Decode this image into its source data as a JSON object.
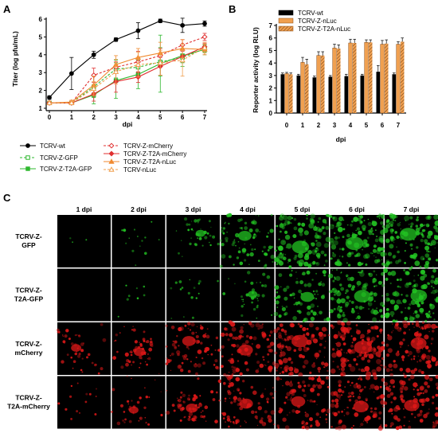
{
  "panels": {
    "a": {
      "letter": "A",
      "xlabel": "dpi",
      "ylabel": "Titer (log pfu/mL)",
      "xlim": [
        0,
        7
      ],
      "ylim": [
        1,
        6
      ],
      "xticks": [
        "0",
        "1",
        "2",
        "3",
        "4",
        "5",
        "6",
        "7"
      ],
      "yticks": [
        "1",
        "2",
        "3",
        "4",
        "5",
        "6"
      ]
    },
    "b": {
      "letter": "B",
      "xlabel": "dpi",
      "ylabel": "Reporter activity (log RLU)",
      "ylim": [
        0,
        7
      ],
      "xticks": [
        "0",
        "1",
        "2",
        "3",
        "4",
        "5",
        "6",
        "7"
      ],
      "yticks": [
        "0",
        "1",
        "2",
        "3",
        "4",
        "5",
        "6",
        "7"
      ]
    },
    "c": {
      "letter": "C",
      "columns": [
        "1 dpi",
        "2 dpi",
        "3 dpi",
        "4 dpi",
        "5 dpi",
        "6 dpi",
        "7 dpi"
      ],
      "rows": [
        {
          "label_line1": "TCRV-Z-",
          "label_line2": "GFP",
          "color": "#22c322",
          "intensity": [
            0.02,
            0.1,
            0.25,
            0.55,
            0.85,
            0.9,
            0.85
          ]
        },
        {
          "label_line1": "TCRV-Z-",
          "label_line2": "T2A-GFP",
          "color": "#22c322",
          "intensity": [
            0.0,
            0.06,
            0.12,
            0.25,
            0.55,
            0.8,
            0.8
          ]
        },
        {
          "label_line1": "TCRV-Z-",
          "label_line2": "mCherry",
          "color": "#e01818",
          "intensity": [
            0.3,
            0.4,
            0.55,
            0.65,
            0.8,
            0.9,
            0.75
          ]
        },
        {
          "label_line1": "TCRV-Z-",
          "label_line2": "T2A-mCherry",
          "color": "#e01818",
          "intensity": [
            0.1,
            0.25,
            0.45,
            0.55,
            0.6,
            0.7,
            0.7
          ]
        }
      ]
    }
  },
  "chart_data": [
    {
      "type": "line",
      "x": [
        0,
        1,
        2,
        3,
        4,
        5,
        6,
        7
      ],
      "xlabel": "dpi",
      "ylabel": "Titer (log pfu/mL)",
      "xlim": [
        0,
        7
      ],
      "ylim": [
        1,
        6
      ],
      "series": [
        {
          "name": "TCRV-wt",
          "color": "#000000",
          "marker": "circle",
          "line": "solid",
          "values": [
            1.6,
            2.95,
            4.0,
            4.85,
            5.35,
            5.9,
            5.65,
            5.75
          ],
          "errors": [
            0.1,
            0.9,
            0.2,
            0.1,
            0.45,
            0.1,
            0.4,
            0.15
          ]
        },
        {
          "name": "TCRV-Z-GFP",
          "color": "#2eb82e",
          "marker": "square-open",
          "line": "dashed",
          "values": [
            1.3,
            1.3,
            2.2,
            3.2,
            3.3,
            3.6,
            3.85,
            4.35
          ],
          "errors": [
            0.1,
            0.1,
            0.6,
            0.5,
            0.5,
            0.8,
            0.5,
            0.2
          ]
        },
        {
          "name": "TCRV-Z-T2A-GFP",
          "color": "#2eb82e",
          "marker": "square",
          "line": "solid",
          "values": [
            1.3,
            1.3,
            1.75,
            2.55,
            2.9,
            3.5,
            3.95,
            4.3
          ],
          "errors": [
            0.1,
            0.1,
            0.5,
            1.0,
            0.8,
            1.6,
            0.4,
            0.3
          ]
        },
        {
          "name": "TCRV-Z-mCherry",
          "color": "#e03030",
          "marker": "diamond-open",
          "line": "dashed",
          "values": [
            1.3,
            1.3,
            2.85,
            3.3,
            3.6,
            3.95,
            4.55,
            5.0
          ],
          "errors": [
            0.1,
            0.1,
            0.4,
            0.3,
            0.6,
            0.4,
            0.3,
            0.2
          ]
        },
        {
          "name": "TCRV-Z-T2A-mCherry",
          "color": "#e03030",
          "marker": "diamond",
          "line": "solid",
          "values": [
            1.3,
            1.3,
            1.8,
            2.5,
            2.75,
            3.35,
            3.9,
            4.45
          ],
          "errors": [
            0.1,
            0.1,
            0.4,
            0.6,
            0.3,
            0.5,
            0.3,
            0.2
          ]
        },
        {
          "name": "TCRV-Z-T2A-nLuc",
          "color": "#f08a30",
          "marker": "triangle",
          "line": "solid",
          "values": [
            1.3,
            1.35,
            2.3,
            3.45,
            3.85,
            4.1,
            4.35,
            4.3
          ],
          "errors": [
            0.1,
            0.1,
            0.5,
            0.5,
            0.5,
            0.6,
            0.5,
            0.3
          ]
        },
        {
          "name": "TCRV-nLuc",
          "color": "#f0a050",
          "marker": "triangle-open",
          "line": "dashed",
          "values": [
            1.3,
            1.3,
            2.1,
            3.05,
            3.45,
            3.55,
            3.7,
            4.4
          ],
          "errors": [
            0.1,
            0.1,
            0.4,
            0.7,
            0.7,
            0.7,
            0.9,
            0.3
          ]
        }
      ]
    },
    {
      "type": "bar",
      "categories": [
        "0",
        "1",
        "2",
        "3",
        "4",
        "5",
        "6",
        "7"
      ],
      "xlabel": "dpi",
      "ylabel": "Reporter activity (log RLU)",
      "ylim": [
        0,
        7
      ],
      "series": [
        {
          "name": "TCRV-wt",
          "color": "#000000",
          "pattern": "solid",
          "values": [
            3.1,
            3.0,
            2.85,
            2.9,
            2.95,
            3.0,
            3.3,
            3.1
          ],
          "errors": [
            0.1,
            0.1,
            0.1,
            0.1,
            0.15,
            0.1,
            0.5,
            0.1
          ]
        },
        {
          "name": "TCRV-Z-nLuc",
          "color": "#f0a050",
          "pattern": "solid",
          "values": [
            3.15,
            4.05,
            4.6,
            5.2,
            5.6,
            5.65,
            5.5,
            5.5
          ],
          "errors": [
            0.1,
            0.4,
            0.3,
            0.3,
            0.3,
            0.2,
            0.3,
            0.2
          ]
        },
        {
          "name": "TCRV-Z-T2A-nLuc",
          "color": "#f0a050",
          "pattern": "hatched",
          "values": [
            3.1,
            3.9,
            4.6,
            5.15,
            5.6,
            5.65,
            5.55,
            5.7
          ],
          "errors": [
            0.1,
            0.4,
            0.3,
            0.3,
            0.3,
            0.2,
            0.3,
            0.3
          ]
        }
      ]
    }
  ]
}
